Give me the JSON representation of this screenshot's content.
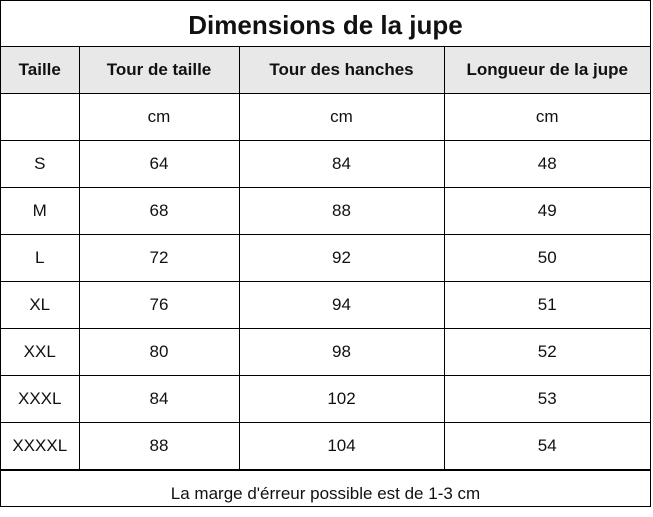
{
  "title": "Dimensions de la jupe",
  "columns": [
    "Taille",
    "Tour de taille",
    "Tour des hanches",
    "Longueur de la jupe"
  ],
  "units": [
    "",
    "cm",
    "cm",
    "cm"
  ],
  "rows": [
    [
      "S",
      "64",
      "84",
      "48"
    ],
    [
      "M",
      "68",
      "88",
      "49"
    ],
    [
      "L",
      "72",
      "92",
      "50"
    ],
    [
      "XL",
      "76",
      "94",
      "51"
    ],
    [
      "XXL",
      "80",
      "98",
      "52"
    ],
    [
      "XXXL",
      "84",
      "102",
      "53"
    ],
    [
      "XXXXL",
      "88",
      "104",
      "54"
    ]
  ],
  "footer": "La marge d'érreur possible est de 1-3 cm"
}
